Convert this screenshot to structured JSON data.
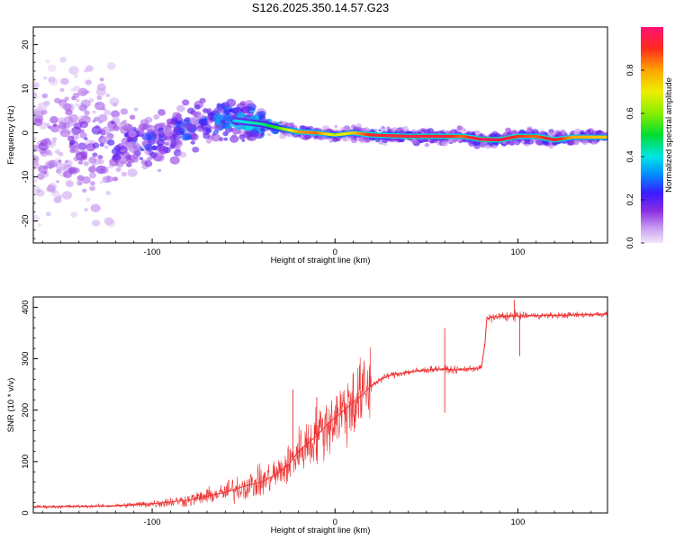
{
  "chart_data": [
    {
      "type": "heatmap",
      "title": "S126.2025.350.14.57.G23",
      "xlabel": "Height of straight line (km)",
      "ylabel": "Frequency (Hz)",
      "xlim": [
        -165,
        149
      ],
      "ylim": [
        -25,
        24
      ],
      "xticks": [
        -100,
        0,
        100
      ],
      "yticks": [
        -20,
        -10,
        0,
        10,
        20
      ],
      "colorbar": {
        "label": "Normalized spectral amplitude",
        "range": [
          0,
          1
        ],
        "ticks": [
          "0.0",
          "0.2",
          "0.4",
          "0.6",
          "0.8"
        ]
      },
      "ridge": {
        "x": [
          -165,
          -140,
          -120,
          -100,
          -80,
          -60,
          -40,
          -30,
          -20,
          -10,
          0,
          10,
          20,
          40,
          60,
          70,
          80,
          90,
          100,
          110,
          120,
          130,
          149
        ],
        "frequency": [
          -2,
          -1.5,
          -2,
          -2.5,
          1,
          3,
          2,
          1,
          0.2,
          0,
          -0.5,
          0,
          -0.5,
          -0.8,
          -0.8,
          -0.8,
          -1.5,
          -1.6,
          -0.8,
          -0.8,
          -1.6,
          -1,
          -1
        ],
        "amplitude": [
          0.15,
          0.18,
          0.22,
          0.28,
          0.3,
          0.35,
          0.45,
          0.55,
          0.8,
          0.85,
          0.65,
          0.75,
          0.92,
          0.95,
          0.95,
          0.85,
          0.97,
          0.97,
          0.9,
          0.85,
          0.95,
          0.8,
          0.75
        ]
      }
    },
    {
      "type": "line",
      "xlabel": "Height of straight line (km)",
      "ylabel": "SNR (10 * v/v)",
      "xlim": [
        -165,
        149
      ],
      "ylim": [
        0,
        420
      ],
      "xticks": [
        -100,
        0,
        100
      ],
      "yticks": [
        0,
        100,
        200,
        300,
        400
      ],
      "series": [
        {
          "name": "SNR",
          "color": "#ee3333",
          "x": [
            -165,
            -140,
            -120,
            -100,
            -80,
            -60,
            -50,
            -40,
            -35,
            -30,
            -25,
            -20,
            -15,
            -10,
            -5,
            0,
            5,
            10,
            15,
            20,
            25,
            30,
            40,
            50,
            55,
            60,
            65,
            70,
            75,
            80,
            82,
            83,
            85,
            90,
            100,
            110,
            120,
            130,
            140,
            149
          ],
          "y": [
            12,
            13,
            14,
            18,
            25,
            40,
            52,
            60,
            70,
            80,
            95,
            120,
            135,
            150,
            170,
            185,
            200,
            215,
            230,
            248,
            260,
            268,
            274,
            278,
            280,
            280,
            278,
            279,
            281,
            282,
            330,
            378,
            380,
            382,
            383,
            384,
            384,
            385,
            386,
            387
          ],
          "spikes": [
            {
              "x": -23,
              "y": 240
            },
            {
              "x": -10,
              "y": 225
            },
            {
              "x": 10,
              "y": 270
            },
            {
              "x": 60,
              "y": 360
            },
            {
              "x": 60,
              "y": 195
            },
            {
              "x": 98,
              "y": 415
            },
            {
              "x": 101,
              "y": 305
            }
          ]
        }
      ]
    }
  ],
  "colors": {
    "line": "#ee3333",
    "axis": "#000000",
    "background": "#ffffff"
  }
}
